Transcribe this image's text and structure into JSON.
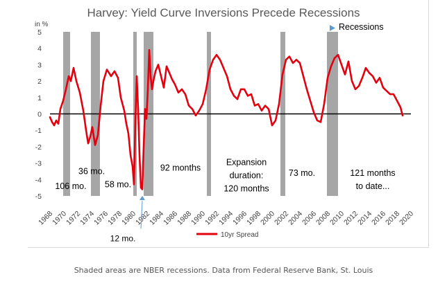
{
  "chart_data": {
    "type": "line",
    "title": "Harvey: Yield Curve Inversions Precede Recessions",
    "yunit": "in %",
    "xlim": [
      1968,
      2020
    ],
    "ylim": [
      -5,
      5
    ],
    "x_ticks": [
      1968,
      1970,
      1972,
      1974,
      1976,
      1978,
      1980,
      1982,
      1984,
      1986,
      1988,
      1990,
      1992,
      1994,
      1996,
      1998,
      2000,
      2002,
      2004,
      2006,
      2008,
      2010,
      2012,
      2014,
      2016,
      2018,
      2020
    ],
    "y_ticks": [
      5,
      4,
      3,
      2,
      1,
      0,
      -1,
      -2,
      -3,
      -4,
      -5
    ],
    "grid": false,
    "legend": "bottom",
    "line_color": "#e3000f",
    "recession_color": "#a6a6a6",
    "recessions": [
      [
        1969.9,
        1970.9
      ],
      [
        1973.9,
        1975.2
      ],
      [
        1980.0,
        1980.5
      ],
      [
        1981.5,
        1982.9
      ],
      [
        1990.6,
        1991.2
      ],
      [
        2001.2,
        2001.9
      ],
      [
        2007.9,
        2009.5
      ]
    ],
    "series": [
      {
        "name": "10yr Spread",
        "x": [
          1968.0,
          1968.3,
          1968.6,
          1968.9,
          1969.2,
          1969.5,
          1969.9,
          1970.3,
          1970.7,
          1971.0,
          1971.4,
          1971.8,
          1972.3,
          1972.8,
          1973.2,
          1973.5,
          1973.8,
          1974.1,
          1974.5,
          1974.9,
          1975.3,
          1975.7,
          1976.2,
          1976.8,
          1977.3,
          1977.8,
          1978.2,
          1978.7,
          1979.0,
          1979.3,
          1979.6,
          1979.9,
          1980.1,
          1980.3,
          1980.5,
          1980.7,
          1980.9,
          1981.1,
          1981.3,
          1981.5,
          1981.7,
          1981.9,
          1982.1,
          1982.3,
          1982.5,
          1982.7,
          1982.9,
          1983.2,
          1983.6,
          1984.0,
          1984.4,
          1984.8,
          1985.2,
          1985.6,
          1986.0,
          1986.5,
          1987.0,
          1987.5,
          1988.0,
          1988.5,
          1989.0,
          1989.5,
          1990.0,
          1990.5,
          1991.0,
          1991.5,
          1992.0,
          1992.5,
          1993.0,
          1993.5,
          1994.0,
          1994.5,
          1995.0,
          1995.5,
          1996.0,
          1996.5,
          1997.0,
          1997.5,
          1998.0,
          1998.5,
          1999.0,
          1999.5,
          2000.0,
          2000.5,
          2001.0,
          2001.5,
          2002.0,
          2002.5,
          2003.0,
          2003.5,
          2004.0,
          2004.5,
          2005.0,
          2005.5,
          2006.0,
          2006.5,
          2007.0,
          2007.5,
          2008.0,
          2008.5,
          2009.0,
          2009.5,
          2010.0,
          2010.5,
          2011.0,
          2011.5,
          2012.0,
          2012.5,
          2013.0,
          2013.5,
          2014.0,
          2014.5,
          2015.0,
          2015.5,
          2016.0,
          2016.5,
          2017.0,
          2017.5,
          2018.0,
          2018.5,
          2018.8
        ],
        "values": [
          -0.2,
          -0.5,
          -0.7,
          -0.4,
          -0.6,
          0.3,
          0.8,
          1.5,
          2.3,
          2.0,
          2.8,
          2.0,
          1.3,
          0.2,
          -1.0,
          -1.8,
          -1.4,
          -0.8,
          -1.9,
          -1.3,
          0.5,
          2.0,
          2.7,
          2.3,
          2.6,
          2.2,
          1.0,
          0.2,
          -0.6,
          -1.2,
          -2.5,
          -3.2,
          -4.3,
          -0.5,
          2.3,
          0.3,
          -2.5,
          -4.5,
          -4.6,
          -2.0,
          0.3,
          -0.3,
          1.5,
          3.9,
          2.3,
          1.5,
          2.0,
          2.6,
          3.0,
          2.3,
          1.6,
          2.9,
          2.5,
          2.1,
          1.8,
          1.3,
          1.5,
          1.2,
          0.5,
          0.3,
          -0.1,
          0.2,
          0.6,
          1.5,
          2.7,
          3.3,
          3.6,
          3.3,
          2.8,
          2.3,
          1.5,
          1.1,
          0.9,
          1.5,
          1.5,
          1.1,
          1.2,
          0.5,
          0.6,
          0.2,
          0.5,
          0.3,
          -0.7,
          -0.4,
          0.6,
          2.4,
          3.3,
          3.5,
          3.1,
          3.3,
          3.1,
          2.3,
          1.5,
          0.8,
          0.1,
          -0.4,
          -0.5,
          0.6,
          2.2,
          2.9,
          3.4,
          3.6,
          3.0,
          2.4,
          3.2,
          2.0,
          1.5,
          1.7,
          2.2,
          2.8,
          2.5,
          2.3,
          1.9,
          2.2,
          1.6,
          1.4,
          1.2,
          1.2,
          0.8,
          0.4,
          -0.1
        ]
      }
    ],
    "annotations": [
      {
        "label": "106 mo.",
        "at": [
          1971.0,
          -4.4
        ]
      },
      {
        "label": "36 mo.",
        "at": [
          1974.0,
          -3.5
        ]
      },
      {
        "label": "58 mo.",
        "at": [
          1977.8,
          -4.3
        ]
      },
      {
        "label": "92 months",
        "at": [
          1986.8,
          -3.3
        ]
      },
      {
        "label": "Expansion",
        "at": [
          1996.3,
          -2.95
        ]
      },
      {
        "label": "duration:",
        "at": [
          1996.3,
          -3.75
        ]
      },
      {
        "label": "120 months",
        "at": [
          1996.3,
          -4.55
        ]
      },
      {
        "label": "73 mo.",
        "at": [
          2004.3,
          -3.6
        ]
      },
      {
        "label": "121 months",
        "at": [
          2014.5,
          -3.6
        ]
      },
      {
        "label": "to date...",
        "at": [
          2014.5,
          -4.4
        ]
      },
      {
        "label": "12 mo.",
        "at": [
          1978.5,
          -7.6
        ]
      }
    ],
    "marker_labels": {
      "recessions": "Recessions"
    },
    "caption": "Shaded areas are NBER recessions. Data from Federal Reserve Bank, St. Louis"
  }
}
